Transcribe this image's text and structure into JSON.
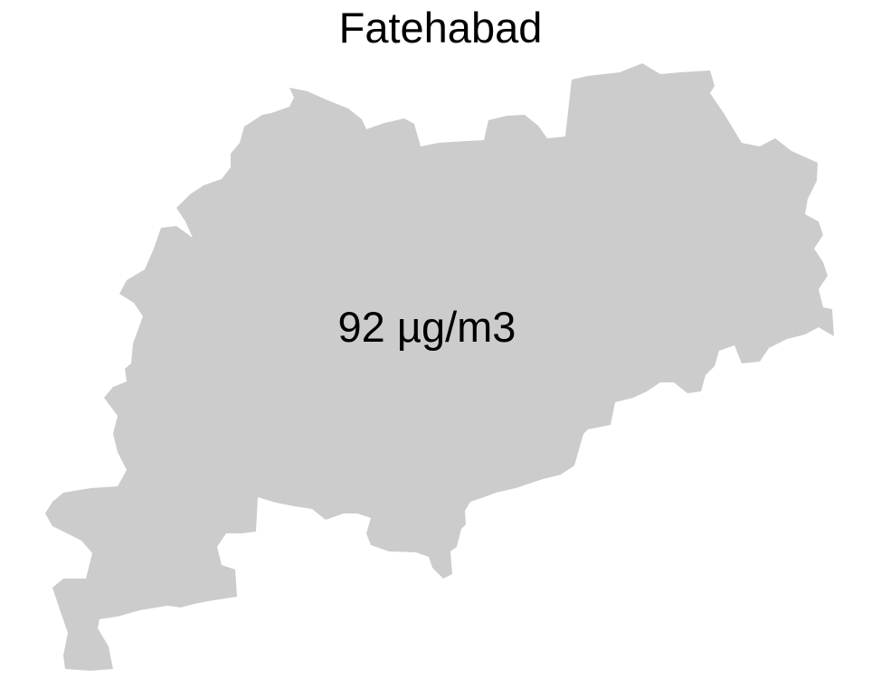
{
  "map": {
    "title": "Fatehabad",
    "value_label": "92 µg/m3",
    "fill_color": "#cccccc",
    "text_color": "#000000",
    "background_color": "#ffffff"
  }
}
